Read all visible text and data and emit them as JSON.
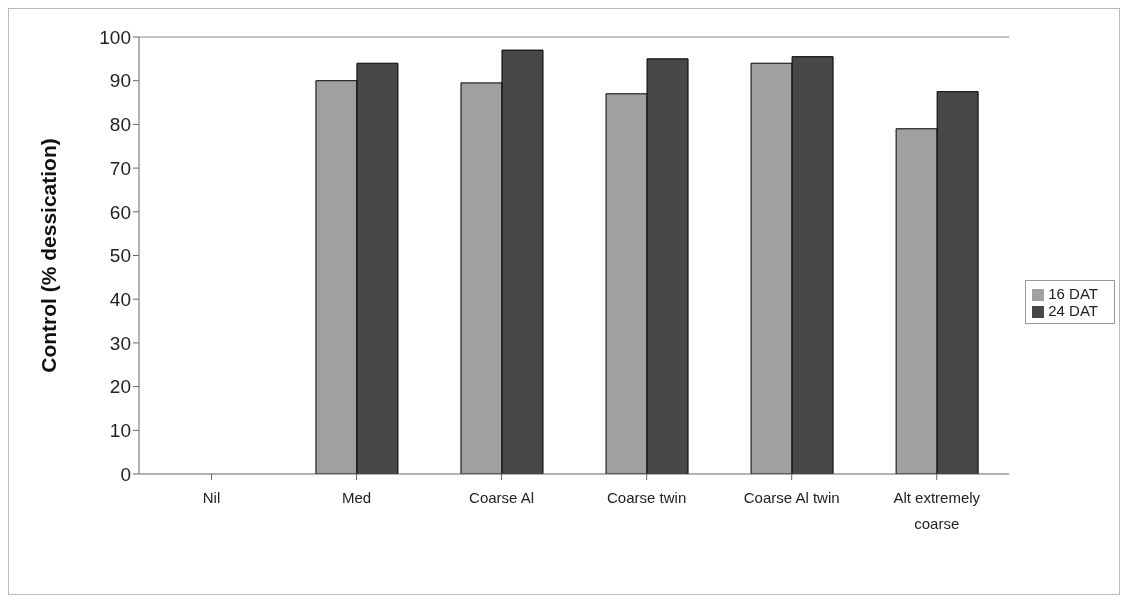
{
  "chart_data": {
    "type": "bar",
    "ylabel": "Control (% dessication)",
    "categories": [
      "Nil",
      "Med",
      "Coarse Al",
      "Coarse twin",
      "Coarse Al twin",
      "Alt extremely coarse"
    ],
    "series": [
      {
        "name": "16 DAT",
        "color": "#a0a0a0",
        "values": [
          0,
          90,
          89.5,
          87,
          94,
          79
        ]
      },
      {
        "name": "24 DAT",
        "color": "#484848",
        "values": [
          0,
          94,
          97,
          95,
          95.5,
          87.5
        ]
      }
    ],
    "ylim": [
      0,
      100
    ],
    "yticks": [
      0,
      10,
      20,
      30,
      40,
      50,
      60,
      70,
      80,
      90,
      100
    ],
    "grid": false,
    "legend": "right"
  }
}
